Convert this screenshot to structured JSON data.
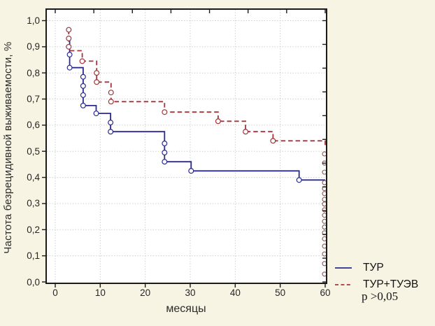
{
  "figure": {
    "background_color": "#f8f4e3",
    "plot_background": "#ffffff",
    "frame_color": "#1b1b1b",
    "grid_color": "#c8c8c4"
  },
  "axes": {
    "y_title": "Частота безрецидивной выживаемости, %",
    "x_title": "месяцы",
    "y_tick_labels": [
      "1,0",
      "0,9",
      "0,8",
      "0,7",
      "0,6",
      "0,5",
      "0,4",
      "0,3",
      "0,2",
      "0,1",
      "0,0"
    ],
    "y_tick_values": [
      1.0,
      0.9,
      0.8,
      0.7,
      0.6,
      0.5,
      0.4,
      0.3,
      0.2,
      0.1,
      0.0
    ],
    "x_tick_labels": [
      "0",
      "10",
      "20",
      "30",
      "40",
      "50",
      "60"
    ],
    "x_tick_values": [
      0,
      10,
      20,
      30,
      40,
      50,
      60
    ]
  },
  "legend": {
    "items": [
      {
        "label": "ТУР",
        "color": "#2b2b8e",
        "style": "solid"
      },
      {
        "label": "ТУР+ТУЭВ",
        "color": "#a3343a",
        "style": "dashed"
      }
    ],
    "p_value": "p >0,05"
  },
  "chart_data": {
    "type": "line",
    "subtype": "kaplan-meier-step",
    "title": "",
    "xlabel": "месяцы",
    "ylabel": "Частота безрецидивной выживаемости, %",
    "xlim": [
      0,
      60
    ],
    "ylim": [
      0.0,
      1.0
    ],
    "grid": "dotted",
    "x_gridlines": [
      0,
      10,
      20,
      30,
      40,
      50
    ],
    "y_gridlines": [
      0.1,
      0.2,
      0.3,
      0.4,
      0.5,
      0.6,
      0.7,
      0.8,
      0.9,
      1.0
    ],
    "series": [
      {
        "name": "ТУР",
        "color": "#2b2b8e",
        "style": "solid",
        "steps": [
          [
            3.2,
            0.93
          ],
          [
            3.2,
            0.82
          ],
          [
            6.2,
            0.82
          ],
          [
            6.2,
            0.675
          ],
          [
            9.1,
            0.675
          ],
          [
            9.1,
            0.645
          ],
          [
            12.3,
            0.645
          ],
          [
            12.3,
            0.575
          ],
          [
            24.3,
            0.575
          ],
          [
            24.3,
            0.46
          ],
          [
            30.2,
            0.46
          ],
          [
            30.2,
            0.425
          ],
          [
            54.2,
            0.425
          ],
          [
            54.2,
            0.39
          ],
          [
            60,
            0.39
          ]
        ],
        "censored_markers": [
          [
            3.2,
            0.87
          ],
          [
            3.2,
            0.82
          ],
          [
            6.2,
            0.785
          ],
          [
            6.2,
            0.75
          ],
          [
            6.2,
            0.715
          ],
          [
            6.2,
            0.675
          ],
          [
            9.1,
            0.645
          ],
          [
            12.3,
            0.61
          ],
          [
            12.3,
            0.575
          ],
          [
            24.3,
            0.53
          ],
          [
            24.3,
            0.495
          ],
          [
            24.3,
            0.46
          ],
          [
            30.2,
            0.425
          ],
          [
            54.2,
            0.39
          ]
        ]
      },
      {
        "name": "ТУР+ТУЭВ",
        "color": "#a3343a",
        "style": "dashed",
        "steps": [
          [
            3,
            0.965
          ],
          [
            3,
            0.885
          ],
          [
            6,
            0.885
          ],
          [
            6,
            0.845
          ],
          [
            9.2,
            0.845
          ],
          [
            9.2,
            0.765
          ],
          [
            12.4,
            0.765
          ],
          [
            12.4,
            0.69
          ],
          [
            24.3,
            0.69
          ],
          [
            24.3,
            0.65
          ],
          [
            36.2,
            0.65
          ],
          [
            36.2,
            0.615
          ],
          [
            42.3,
            0.615
          ],
          [
            42.3,
            0.575
          ],
          [
            48.4,
            0.575
          ],
          [
            48.4,
            0.54
          ],
          [
            60,
            0.54
          ],
          [
            60,
            0.52
          ]
        ],
        "censored_markers": [
          [
            3,
            0.965
          ],
          [
            3,
            0.932
          ],
          [
            3,
            0.9
          ],
          [
            6,
            0.845
          ],
          [
            9.2,
            0.8
          ],
          [
            9.2,
            0.765
          ],
          [
            12.4,
            0.725
          ],
          [
            12.4,
            0.69
          ],
          [
            24.3,
            0.65
          ],
          [
            36.2,
            0.615
          ],
          [
            42.3,
            0.575
          ],
          [
            48.4,
            0.54
          ]
        ]
      }
    ],
    "end_of_followup_censored_column": {
      "x": 60,
      "color": "#8a5550",
      "values": [
        0.49,
        0.455,
        0.42,
        0.38,
        0.357,
        0.338,
        0.316,
        0.298,
        0.276,
        0.255,
        0.232,
        0.21,
        0.188,
        0.165,
        0.137,
        0.107,
        0.07,
        0.03
      ]
    },
    "legend_position": "bottom-right-outside",
    "annotation": "p >0,05"
  }
}
